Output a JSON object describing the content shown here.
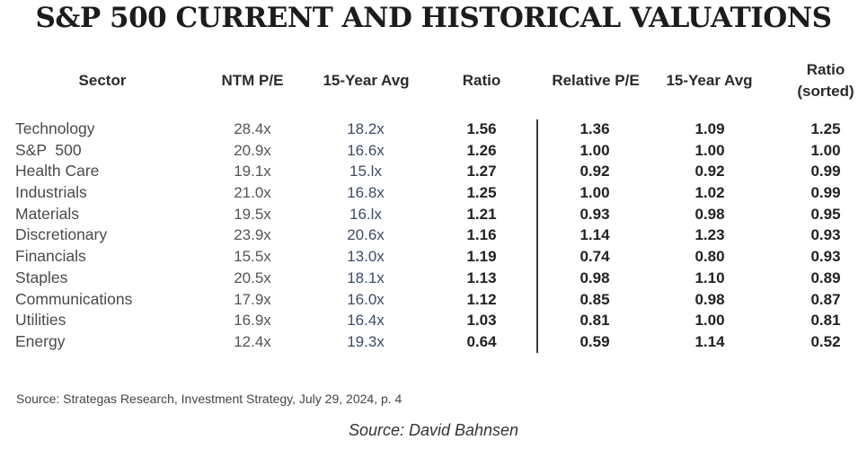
{
  "title": "S&P 500 CURRENT AND HISTORICAL VALUATIONS",
  "columns": {
    "sector": "Sector",
    "ntm_pe": "NTM P/E",
    "avg_15y": "15-Year Avg",
    "ratio": "Ratio",
    "relative_pe": "Relative P/E",
    "rel_avg_15y": "15-Year Avg",
    "ratio_sorted_line1": "Ratio",
    "ratio_sorted_line2": "(sorted)"
  },
  "rows": [
    {
      "sector": "Technology",
      "ntm_pe": "28.4x",
      "avg_15y": "18.2x",
      "ratio": "1.56",
      "relative_pe": "1.36",
      "rel_avg_15y": "1.09",
      "ratio_sorted": "1.25"
    },
    {
      "sector": "S&P  500",
      "ntm_pe": "20.9x",
      "avg_15y": "16.6x",
      "ratio": "1.26",
      "relative_pe": "1.00",
      "rel_avg_15y": "1.00",
      "ratio_sorted": "1.00"
    },
    {
      "sector": "Health Care",
      "ntm_pe": "19.1x",
      "avg_15y": "15.lx",
      "ratio": "1.27",
      "relative_pe": "0.92",
      "rel_avg_15y": "0.92",
      "ratio_sorted": "0.99"
    },
    {
      "sector": "Industrials",
      "ntm_pe": "21.0x",
      "avg_15y": "16.8x",
      "ratio": "1.25",
      "relative_pe": "1.00",
      "rel_avg_15y": "1.02",
      "ratio_sorted": "0.99"
    },
    {
      "sector": "Materials",
      "ntm_pe": "19.5x",
      "avg_15y": "16.lx",
      "ratio": "1.21",
      "relative_pe": "0.93",
      "rel_avg_15y": "0.98",
      "ratio_sorted": "0.95"
    },
    {
      "sector": "Discretionary",
      "ntm_pe": "23.9x",
      "avg_15y": "20.6x",
      "ratio": "1.16",
      "relative_pe": "1.14",
      "rel_avg_15y": "1.23",
      "ratio_sorted": "0.93"
    },
    {
      "sector": "Financials",
      "ntm_pe": "15.5x",
      "avg_15y": "13.0x",
      "ratio": "1.19",
      "relative_pe": "0.74",
      "rel_avg_15y": "0.80",
      "ratio_sorted": "0.93"
    },
    {
      "sector": "Staples",
      "ntm_pe": "20.5x",
      "avg_15y": "18.1x",
      "ratio": "1.13",
      "relative_pe": "0.98",
      "rel_avg_15y": "1.10",
      "ratio_sorted": "0.89"
    },
    {
      "sector": "Communications",
      "ntm_pe": "17.9x",
      "avg_15y": "16.0x",
      "ratio": "1.12",
      "relative_pe": "0.85",
      "rel_avg_15y": "0.98",
      "ratio_sorted": "0.87"
    },
    {
      "sector": "Utilities",
      "ntm_pe": "16.9x",
      "avg_15y": "16.4x",
      "ratio": "1.03",
      "relative_pe": "0.81",
      "rel_avg_15y": "1.00",
      "ratio_sorted": "0.81"
    },
    {
      "sector": "Energy",
      "ntm_pe": "12.4x",
      "avg_15y": "19.3x",
      "ratio": "0.64",
      "relative_pe": "0.59",
      "rel_avg_15y": "1.14",
      "ratio_sorted": "0.52"
    }
  ],
  "source": "Source: Strategas Research, Investment Strategy, July 29, 2024, p. 4",
  "credit": "Source: David Bahnsen"
}
